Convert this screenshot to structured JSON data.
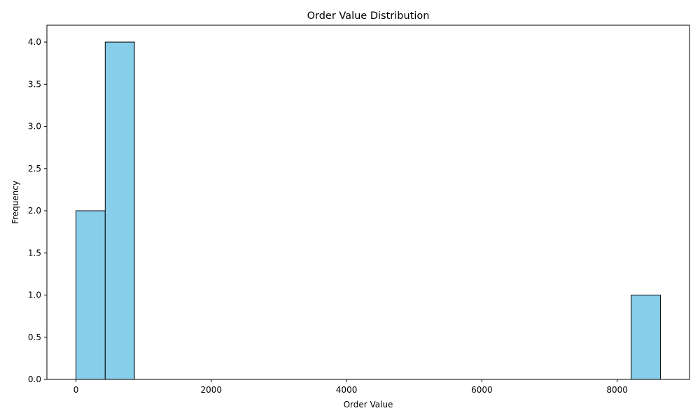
{
  "chart_data": {
    "type": "bar",
    "title": "Order Value Distribution",
    "xlabel": "Order Value",
    "ylabel": "Frequency",
    "xlim": [
      -430,
      9070
    ],
    "ylim": [
      0,
      4.2
    ],
    "grid": false,
    "bins": [
      {
        "start": 0,
        "end": 432,
        "count": 2
      },
      {
        "start": 432,
        "end": 864,
        "count": 4
      },
      {
        "start": 8208,
        "end": 8640,
        "count": 1
      }
    ],
    "x_ticks": [
      {
        "value": 0,
        "label": "0"
      },
      {
        "value": 2000,
        "label": "2000"
      },
      {
        "value": 4000,
        "label": "4000"
      },
      {
        "value": 6000,
        "label": "6000"
      },
      {
        "value": 8000,
        "label": "8000"
      }
    ],
    "y_ticks": [
      {
        "value": 0,
        "label": "0.0"
      },
      {
        "value": 0.5,
        "label": "0.5"
      },
      {
        "value": 1.0,
        "label": "1.0"
      },
      {
        "value": 1.5,
        "label": "1.5"
      },
      {
        "value": 2.0,
        "label": "2.0"
      },
      {
        "value": 2.5,
        "label": "2.5"
      },
      {
        "value": 3.0,
        "label": "3.0"
      },
      {
        "value": 3.5,
        "label": "3.5"
      },
      {
        "value": 4.0,
        "label": "4.0"
      }
    ],
    "colors": {
      "bar_fill": "#87ceeb",
      "bar_edge": "#000000",
      "axis": "#000000"
    }
  }
}
